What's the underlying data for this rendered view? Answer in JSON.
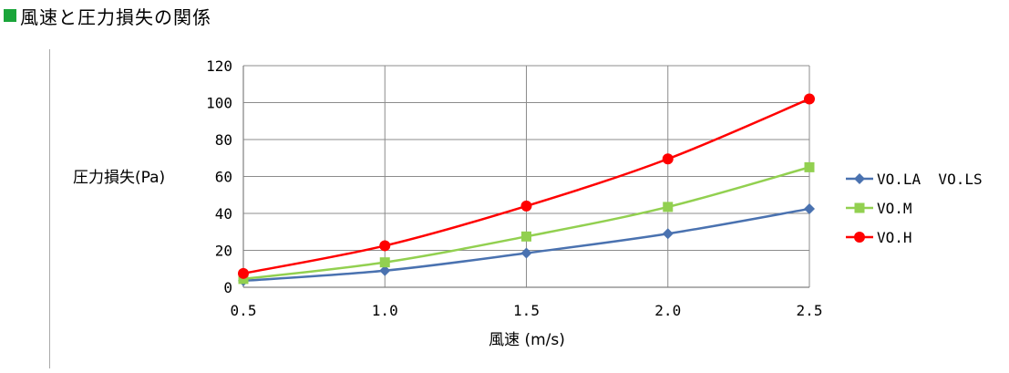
{
  "header": {
    "title": "風速と圧力損失の関係"
  },
  "chart_data": {
    "type": "line",
    "title": "",
    "xlabel": "風速 (m/s)",
    "ylabel": "圧力損失(Pa)",
    "x": [
      0.5,
      1.0,
      1.5,
      2.0,
      2.5
    ],
    "xticks": [
      "0.5",
      "1.0",
      "1.5",
      "2.0",
      "2.5"
    ],
    "yticks": [
      "0",
      "20",
      "40",
      "60",
      "80",
      "100",
      "120"
    ],
    "xlim": [
      0.5,
      2.5
    ],
    "ylim": [
      0,
      120
    ],
    "grid": true,
    "legend_position": "right",
    "series": [
      {
        "name": "VO.LA  VO.LS",
        "values": [
          3.5,
          9,
          18.5,
          29,
          42.5
        ],
        "color": "#4a72b0",
        "marker": "diamond"
      },
      {
        "name": "VO.M",
        "values": [
          4.5,
          13.5,
          27.5,
          43.5,
          65
        ],
        "color": "#92d050",
        "marker": "square"
      },
      {
        "name": "VO.H",
        "values": [
          7.5,
          22.5,
          44,
          69.5,
          102
        ],
        "color": "#ff0000",
        "marker": "circle"
      }
    ]
  }
}
